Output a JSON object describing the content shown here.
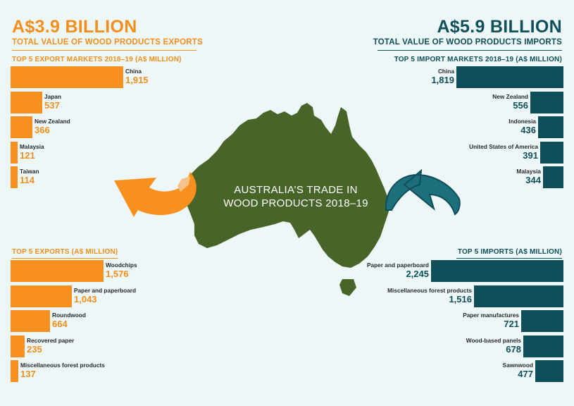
{
  "colors": {
    "export": "#f7901e",
    "import": "#0e4e58",
    "map": "#476528",
    "background": "#eef7f7"
  },
  "exports": {
    "headline": "A$3.9 BILLION",
    "subtitle": "TOTAL VALUE OF WOOD PRODUCTS EXPORTS",
    "markets_title": "TOP 5 EXPORT MARKETS 2018–19 (A$ MILLION)",
    "products_title": "TOP 5 EXPORTS (A$ MILLION)"
  },
  "imports": {
    "headline": "A$5.9 BILLION",
    "subtitle": "TOTAL VALUE OF WOOD PRODUCTS IMPORTS",
    "markets_title": "TOP 5 IMPORT MARKETS 2018–19 (A$ MILLION)",
    "products_title": "TOP 5 IMPORTS (A$ MILLION)"
  },
  "map_title_line1": "AUSTRALIA’S TRADE IN",
  "map_title_line2": "WOOD PRODUCTS 2018–19",
  "chart_data": [
    {
      "type": "bar",
      "title": "TOP 5 EXPORT MARKETS 2018–19 (A$ MILLION)",
      "categories": [
        "China",
        "Japan",
        "New Zealand",
        "Malaysia",
        "Taiwan"
      ],
      "values": [
        1915,
        537,
        366,
        121,
        114
      ],
      "labels": [
        "1,915",
        "537",
        "366",
        "121",
        "114"
      ]
    },
    {
      "type": "bar",
      "title": "TOP 5 IMPORT MARKETS 2018–19 (A$ MILLION)",
      "categories": [
        "China",
        "New Zealand",
        "Indonesia",
        "United States of America",
        "Malaysia"
      ],
      "values": [
        1819,
        556,
        436,
        391,
        344
      ],
      "labels": [
        "1,819",
        "556",
        "436",
        "391",
        "344"
      ]
    },
    {
      "type": "bar",
      "title": "TOP 5 EXPORTS (A$ MILLION)",
      "categories": [
        "Woodchips",
        "Paper and paperboard",
        "Roundwood",
        "Recovered paper",
        "Miscellaneous forest products"
      ],
      "values": [
        1576,
        1043,
        664,
        235,
        137
      ],
      "labels": [
        "1,576",
        "1,043",
        "664",
        "235",
        "137"
      ]
    },
    {
      "type": "bar",
      "title": "TOP 5 IMPORTS (A$ MILLION)",
      "categories": [
        "Paper and paperboard",
        "Miscellaneous forest products",
        "Paper manufactures",
        "Wood-based panels",
        "Sawnwood"
      ],
      "values": [
        2245,
        1516,
        721,
        678,
        477
      ],
      "labels": [
        "2,245",
        "1,516",
        "721",
        "678",
        "477"
      ]
    }
  ]
}
